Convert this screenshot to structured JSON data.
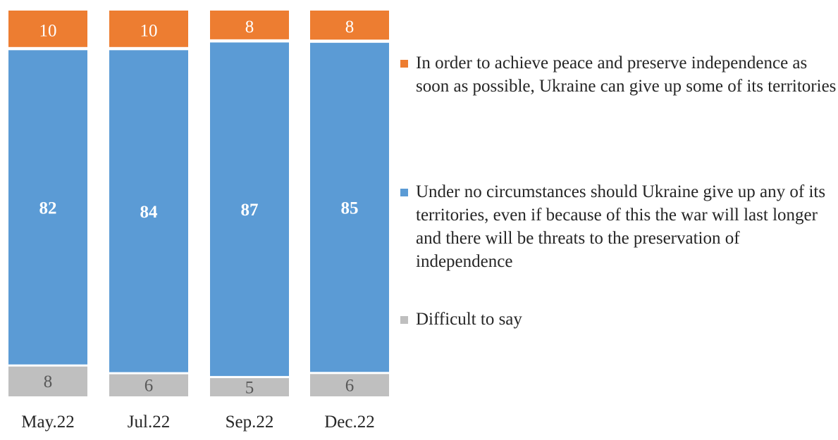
{
  "chart_data": {
    "type": "stacked-bar",
    "categories": [
      "May.22",
      "Jul.22",
      "Sep.22",
      "Dec.22"
    ],
    "series": [
      {
        "name": "Difficult to say",
        "values": [
          8,
          6,
          5,
          6
        ],
        "color": "#bfbfbf"
      },
      {
        "name": "Under no circumstances should Ukraine give up any of its territories, even if because of this the war will last longer and there will be threats to the preservation of independence",
        "values": [
          82,
          84,
          87,
          85
        ],
        "color": "#5b9bd5"
      },
      {
        "name": "In order to achieve peace and preserve independence as soon as possible, Ukraine can give up some of its territories",
        "values": [
          10,
          10,
          8,
          8
        ],
        "color": "#ed7d31"
      }
    ],
    "legend_order": [
      2,
      1,
      0
    ],
    "legend_position": "right",
    "data_labels": true,
    "grid": false,
    "ylim": [
      0,
      100
    ]
  }
}
